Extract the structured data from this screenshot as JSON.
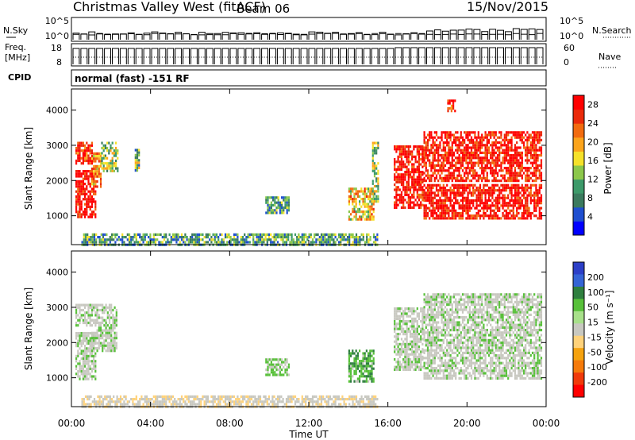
{
  "title": {
    "station": "Christmas Valley West (fitACF)",
    "beam": "Beam 06",
    "date": "15/Nov/2015"
  },
  "summary_panel": {
    "nsky_label": "N.Sky",
    "nsky_ticks": [
      "10^5",
      "10^0"
    ],
    "nsearch_label": "N.Search",
    "nsearch_ticks": [
      "10^5",
      "10^0"
    ],
    "freq_label_line1": "Freq.",
    "freq_label_line2": "[MHz]",
    "freq_ticks": [
      "18",
      "8"
    ],
    "nave_label": "Nave",
    "nave_ticks": [
      "60",
      "0"
    ],
    "cpid_label": "CPID",
    "cpid_value": "normal (fast) -151 RF"
  },
  "colors": {
    "power": [
      "#0000ff",
      "#1f4fd0",
      "#3b7a5e",
      "#3d9a6a",
      "#8cc84b",
      "#f5e12a",
      "#fba41c",
      "#f26b0f",
      "#ea2a0a",
      "#ff0000"
    ],
    "velocity": [
      "#2c3fc7",
      "#3564d6",
      "#2f7f3f",
      "#58c03a",
      "#a8e08a",
      "#c8c8c0",
      "#ffd27a",
      "#f5a20f",
      "#f57a0a",
      "#f03a0a",
      "#ff0000"
    ],
    "ground_grey": "#c8c8c0"
  },
  "chart_data": [
    {
      "type": "heatmap",
      "name": "power",
      "xlabel": "",
      "ylabel": "Slant Range [km]",
      "x_unit": "hours UT",
      "xlim": [
        0,
        24
      ],
      "ylim": [
        180,
        4600
      ],
      "yticks": [
        "1000",
        "2000",
        "3000",
        "4000"
      ],
      "colorbar": {
        "label": "Power [dB]",
        "ticks": [
          "4",
          "8",
          "12",
          "16",
          "20",
          "24",
          "28"
        ],
        "range": [
          0,
          30
        ]
      },
      "regions": [
        {
          "t0": 0.2,
          "t1": 1.2,
          "r0": 1000,
          "r1": 2300,
          "value": 29
        },
        {
          "t0": 0.2,
          "t1": 1.0,
          "r0": 2500,
          "r1": 3100,
          "value": 27
        },
        {
          "t0": 1.0,
          "t1": 1.5,
          "r0": 1800,
          "r1": 2800,
          "value": 20
        },
        {
          "t0": 1.5,
          "t1": 2.3,
          "r0": 2300,
          "r1": 3100,
          "value": 14
        },
        {
          "t0": 3.2,
          "t1": 3.4,
          "r0": 2300,
          "r1": 2900,
          "value": 12
        },
        {
          "t0": 9.8,
          "t1": 11.0,
          "r0": 1050,
          "r1": 1550,
          "value": 10
        },
        {
          "t0": 14.0,
          "t1": 15.3,
          "r0": 900,
          "r1": 1800,
          "value": 18
        },
        {
          "t0": 15.2,
          "t1": 15.5,
          "r0": 1400,
          "r1": 3100,
          "value": 13
        },
        {
          "t0": 16.3,
          "t1": 17.8,
          "r0": 1200,
          "r1": 3000,
          "value": 29
        },
        {
          "t0": 17.8,
          "t1": 23.8,
          "r0": 950,
          "r1": 1900,
          "value": 29
        },
        {
          "t0": 17.8,
          "t1": 23.8,
          "r0": 2000,
          "r1": 3400,
          "value": 28
        },
        {
          "t0": 19.0,
          "t1": 19.4,
          "r0": 4000,
          "r1": 4300,
          "value": 27
        },
        {
          "t0": 0.5,
          "t1": 15.5,
          "r0": 180,
          "r1": 500,
          "value": 10
        }
      ]
    },
    {
      "type": "heatmap",
      "name": "velocity",
      "xlabel": "Time UT",
      "ylabel": "Slant Range [km]",
      "x_unit": "hours UT",
      "xlim": [
        0,
        24
      ],
      "ylim": [
        180,
        4600
      ],
      "xticks": [
        "00:00",
        "04:00",
        "08:00",
        "12:00",
        "16:00",
        "20:00",
        "00:00"
      ],
      "yticks": [
        "1000",
        "2000",
        "3000",
        "4000"
      ],
      "colorbar": {
        "label": "Velocity [m s⁻¹]",
        "ticks": [
          "200",
          "100",
          "50",
          "15",
          "-15",
          "-50",
          "-100",
          "-200"
        ],
        "range": [
          -250,
          250
        ]
      },
      "regions": [
        {
          "t0": 0.2,
          "t1": 1.2,
          "r0": 1000,
          "r1": 2300,
          "value": 0
        },
        {
          "t0": 0.2,
          "t1": 1.0,
          "r0": 2500,
          "r1": 3100,
          "value": 0
        },
        {
          "t0": 1.0,
          "t1": 2.3,
          "r0": 1800,
          "r1": 3100,
          "value": 0
        },
        {
          "t0": 9.8,
          "t1": 11.0,
          "r0": 1050,
          "r1": 1550,
          "value": 20
        },
        {
          "t0": 14.0,
          "t1": 15.3,
          "r0": 900,
          "r1": 1800,
          "value": 40
        },
        {
          "t0": 16.3,
          "t1": 17.8,
          "r0": 1200,
          "r1": 3000,
          "value": 0
        },
        {
          "t0": 17.8,
          "t1": 23.8,
          "r0": 950,
          "r1": 3400,
          "value": 0
        },
        {
          "t0": 0.5,
          "t1": 15.5,
          "r0": 180,
          "r1": 500,
          "value": -40
        }
      ]
    }
  ]
}
